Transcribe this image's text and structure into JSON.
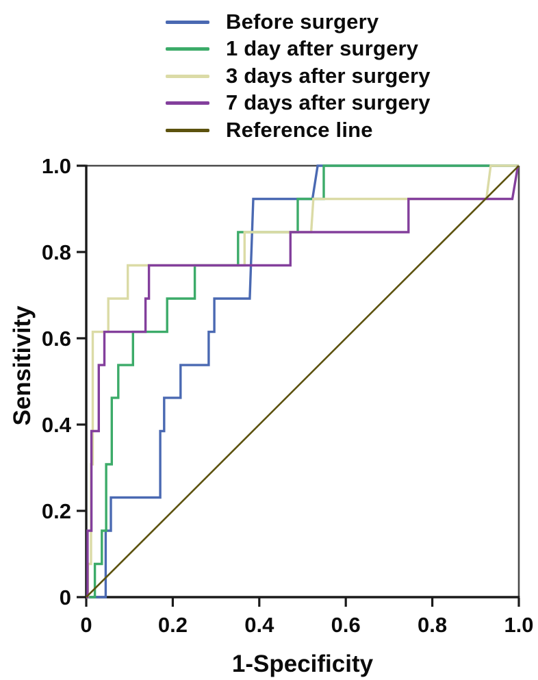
{
  "figure": {
    "background": "#ffffff",
    "text_color": "#0b0b0b",
    "axis_color": "#1a1a1a",
    "frame_color": "#4a4a4a"
  },
  "chart_data": {
    "type": "line",
    "subtype": "roc-step-curves",
    "title": "",
    "xlabel": "1-Specificity",
    "ylabel": "Sensitivity",
    "xlim": [
      0,
      1
    ],
    "ylim": [
      0,
      1
    ],
    "grid": false,
    "legend_position": "above-plot-left",
    "x_ticks": {
      "values": [
        0,
        0.2,
        0.4,
        0.6,
        0.8,
        1.0
      ],
      "labels": [
        "0",
        "0.2",
        "0.4",
        "0.6",
        "0.8",
        "1.0"
      ]
    },
    "y_ticks": {
      "values": [
        0,
        0.2,
        0.4,
        0.6,
        0.8,
        1.0
      ],
      "labels": [
        "0",
        "0.2",
        "0.4",
        "0.6",
        "0.8",
        "1.0"
      ]
    },
    "series": [
      {
        "name": "Before surgery",
        "color": "#4a69b2",
        "stroke_width": 3.4,
        "points": [
          [
            0,
            0
          ],
          [
            0.045,
            0
          ],
          [
            0.045,
            0.154
          ],
          [
            0.057,
            0.154
          ],
          [
            0.057,
            0.231
          ],
          [
            0.171,
            0.231
          ],
          [
            0.171,
            0.385
          ],
          [
            0.18,
            0.385
          ],
          [
            0.18,
            0.462
          ],
          [
            0.218,
            0.462
          ],
          [
            0.218,
            0.538
          ],
          [
            0.283,
            0.538
          ],
          [
            0.283,
            0.615
          ],
          [
            0.296,
            0.615
          ],
          [
            0.296,
            0.692
          ],
          [
            0.378,
            0.692
          ],
          [
            0.386,
            0.923
          ],
          [
            0.523,
            0.923
          ],
          [
            0.535,
            1.0
          ],
          [
            1,
            1
          ]
        ]
      },
      {
        "name": "1 day after surgery",
        "color": "#3cab69",
        "stroke_width": 3.4,
        "points": [
          [
            0,
            0
          ],
          [
            0.02,
            0
          ],
          [
            0.02,
            0.077
          ],
          [
            0.036,
            0.077
          ],
          [
            0.036,
            0.154
          ],
          [
            0.046,
            0.154
          ],
          [
            0.046,
            0.308
          ],
          [
            0.059,
            0.308
          ],
          [
            0.059,
            0.462
          ],
          [
            0.074,
            0.462
          ],
          [
            0.074,
            0.538
          ],
          [
            0.108,
            0.538
          ],
          [
            0.108,
            0.615
          ],
          [
            0.187,
            0.615
          ],
          [
            0.187,
            0.692
          ],
          [
            0.251,
            0.692
          ],
          [
            0.251,
            0.769
          ],
          [
            0.351,
            0.769
          ],
          [
            0.351,
            0.846
          ],
          [
            0.489,
            0.846
          ],
          [
            0.489,
            0.923
          ],
          [
            0.549,
            0.923
          ],
          [
            0.549,
            1.0
          ],
          [
            1,
            1
          ]
        ]
      },
      {
        "name": "3 days after surgery",
        "color": "#dbdba6",
        "stroke_width": 3.4,
        "points": [
          [
            0,
            0
          ],
          [
            0.004,
            0
          ],
          [
            0.004,
            0.077
          ],
          [
            0.011,
            0.077
          ],
          [
            0.011,
            0.308
          ],
          [
            0.015,
            0.308
          ],
          [
            0.015,
            0.615
          ],
          [
            0.051,
            0.615
          ],
          [
            0.051,
            0.692
          ],
          [
            0.096,
            0.692
          ],
          [
            0.096,
            0.769
          ],
          [
            0.366,
            0.769
          ],
          [
            0.366,
            0.846
          ],
          [
            0.52,
            0.846
          ],
          [
            0.525,
            0.923
          ],
          [
            0.925,
            0.923
          ],
          [
            0.935,
            1.0
          ],
          [
            1,
            1
          ]
        ]
      },
      {
        "name": "7 days after surgery",
        "color": "#833f9c",
        "stroke_width": 3.4,
        "points": [
          [
            0,
            0
          ],
          [
            0.003,
            0
          ],
          [
            0.003,
            0.154
          ],
          [
            0.012,
            0.154
          ],
          [
            0.012,
            0.385
          ],
          [
            0.029,
            0.385
          ],
          [
            0.029,
            0.538
          ],
          [
            0.042,
            0.538
          ],
          [
            0.042,
            0.615
          ],
          [
            0.137,
            0.615
          ],
          [
            0.137,
            0.692
          ],
          [
            0.145,
            0.692
          ],
          [
            0.145,
            0.769
          ],
          [
            0.472,
            0.769
          ],
          [
            0.472,
            0.846
          ],
          [
            0.745,
            0.846
          ],
          [
            0.745,
            0.923
          ],
          [
            0.985,
            0.923
          ],
          [
            0.998,
            1.0
          ]
        ]
      },
      {
        "name": "Reference line",
        "color": "#5c520e",
        "stroke_width": 2.6,
        "points": [
          [
            0,
            0
          ],
          [
            1,
            1
          ]
        ]
      }
    ]
  }
}
